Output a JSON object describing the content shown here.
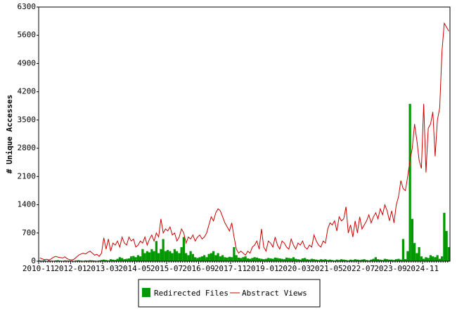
{
  "chart_data": {
    "type": "bar-line",
    "y_label": "# Unique Accesses",
    "categories": [
      "2010-11",
      null,
      null,
      null,
      null,
      null,
      null,
      null,
      null,
      null,
      null,
      null,
      null,
      null,
      "2012-01",
      null,
      null,
      null,
      null,
      null,
      null,
      null,
      null,
      null,
      null,
      null,
      null,
      null,
      "2013-03",
      null,
      null,
      null,
      null,
      null,
      null,
      null,
      null,
      null,
      null,
      null,
      null,
      null,
      "2014-05",
      null,
      null,
      null,
      null,
      null,
      null,
      null,
      null,
      null,
      null,
      null,
      null,
      null,
      "2015-07",
      null,
      null,
      null,
      null,
      null,
      null,
      null,
      null,
      null,
      null,
      null,
      null,
      null,
      "2016-09",
      null,
      null,
      null,
      null,
      null,
      null,
      null,
      null,
      null,
      null,
      null,
      null,
      null,
      "2017-11",
      null,
      null,
      null,
      null,
      null,
      null,
      null,
      null,
      null,
      null,
      null,
      null,
      null,
      "2019-01",
      null,
      null,
      null,
      null,
      null,
      null,
      null,
      null,
      null,
      null,
      null,
      null,
      null,
      "2020-03",
      null,
      null,
      null,
      null,
      null,
      null,
      null,
      null,
      null,
      null,
      null,
      null,
      null,
      "2021-05",
      null,
      null,
      null,
      null,
      null,
      null,
      null,
      null,
      null,
      null,
      null,
      null,
      null,
      "2022-07",
      null,
      null,
      null,
      null,
      null,
      null,
      null,
      null,
      null,
      null,
      null,
      null,
      null,
      "2023-09",
      null,
      null,
      null,
      null,
      null,
      null,
      null,
      null,
      null,
      null,
      null,
      null,
      null,
      "2024-11",
      null,
      null,
      null,
      null,
      null,
      null,
      null,
      null,
      null,
      null,
      null
    ],
    "series": [
      {
        "name": "Redirected Files",
        "color": "#009900",
        "kind": "bar",
        "values": [
          20,
          15,
          25,
          10,
          20,
          15,
          10,
          20,
          25,
          15,
          10,
          20,
          15,
          20,
          15,
          10,
          20,
          25,
          15,
          10,
          20,
          15,
          25,
          20,
          15,
          10,
          20,
          30,
          40,
          30,
          20,
          50,
          40,
          30,
          60,
          100,
          80,
          50,
          60,
          70,
          120,
          130,
          100,
          150,
          120,
          300,
          200,
          250,
          220,
          300,
          250,
          500,
          200,
          300,
          550,
          250,
          280,
          250,
          200,
          300,
          250,
          200,
          350,
          600,
          200,
          150,
          250,
          180,
          100,
          80,
          100,
          120,
          150,
          100,
          180,
          200,
          250,
          150,
          200,
          120,
          150,
          100,
          90,
          110,
          100,
          350,
          150,
          90,
          80,
          100,
          120,
          70,
          60,
          80,
          100,
          90,
          70,
          60,
          50,
          60,
          80,
          70,
          60,
          90,
          80,
          70,
          60,
          50,
          90,
          80,
          70,
          100,
          60,
          50,
          40,
          70,
          80,
          50,
          40,
          60,
          50,
          40,
          30,
          50,
          40,
          50,
          30,
          40,
          30,
          20,
          40,
          30,
          50,
          40,
          30,
          20,
          40,
          30,
          50,
          40,
          30,
          40,
          50,
          30,
          20,
          40,
          60,
          100,
          50,
          40,
          30,
          60,
          50,
          40,
          40,
          30,
          50,
          60,
          40,
          550,
          50,
          250,
          3900,
          1050,
          450,
          200,
          350,
          120,
          60,
          100,
          80,
          150,
          120,
          100,
          150,
          60,
          120,
          1200,
          750,
          350
        ]
      },
      {
        "name": "Abstract Views",
        "color": "#cc0000",
        "kind": "line",
        "values": [
          80,
          60,
          40,
          50,
          30,
          60,
          100,
          120,
          100,
          90,
          80,
          110,
          60,
          40,
          30,
          50,
          100,
          150,
          180,
          200,
          180,
          220,
          250,
          200,
          150,
          170,
          120,
          200,
          580,
          300,
          550,
          250,
          450,
          400,
          500,
          350,
          600,
          450,
          400,
          600,
          500,
          550,
          350,
          400,
          500,
          450,
          600,
          400,
          550,
          650,
          500,
          700,
          600,
          1050,
          700,
          800,
          750,
          850,
          650,
          700,
          500,
          600,
          800,
          700,
          450,
          600,
          550,
          650,
          500,
          600,
          650,
          550,
          600,
          700,
          900,
          1100,
          1000,
          1200,
          1300,
          1250,
          1100,
          950,
          850,
          750,
          950,
          600,
          300,
          200,
          250,
          200,
          150,
          250,
          200,
          350,
          400,
          500,
          300,
          800,
          350,
          250,
          500,
          450,
          350,
          600,
          400,
          300,
          500,
          450,
          350,
          300,
          550,
          400,
          300,
          450,
          400,
          500,
          350,
          300,
          400,
          350,
          650,
          500,
          400,
          350,
          500,
          450,
          800,
          950,
          900,
          1000,
          750,
          1100,
          1000,
          1050,
          1350,
          700,
          900,
          600,
          1000,
          700,
          1100,
          800,
          900,
          1000,
          1150,
          950,
          1100,
          1200,
          1050,
          1300,
          1150,
          1400,
          1250,
          1000,
          1250,
          950,
          1400,
          1600,
          2000,
          1800,
          1750,
          2100,
          2500,
          2800,
          3400,
          3000,
          2500,
          2300,
          3900,
          2200,
          3300,
          3400,
          3700,
          2600,
          3500,
          3800,
          5200,
          5900,
          5800,
          5700
        ]
      }
    ],
    "ylim": [
      0,
      6300
    ],
    "yticks": [
      0,
      700,
      1400,
      2100,
      2800,
      3500,
      4200,
      4900,
      5600,
      6300
    ]
  }
}
